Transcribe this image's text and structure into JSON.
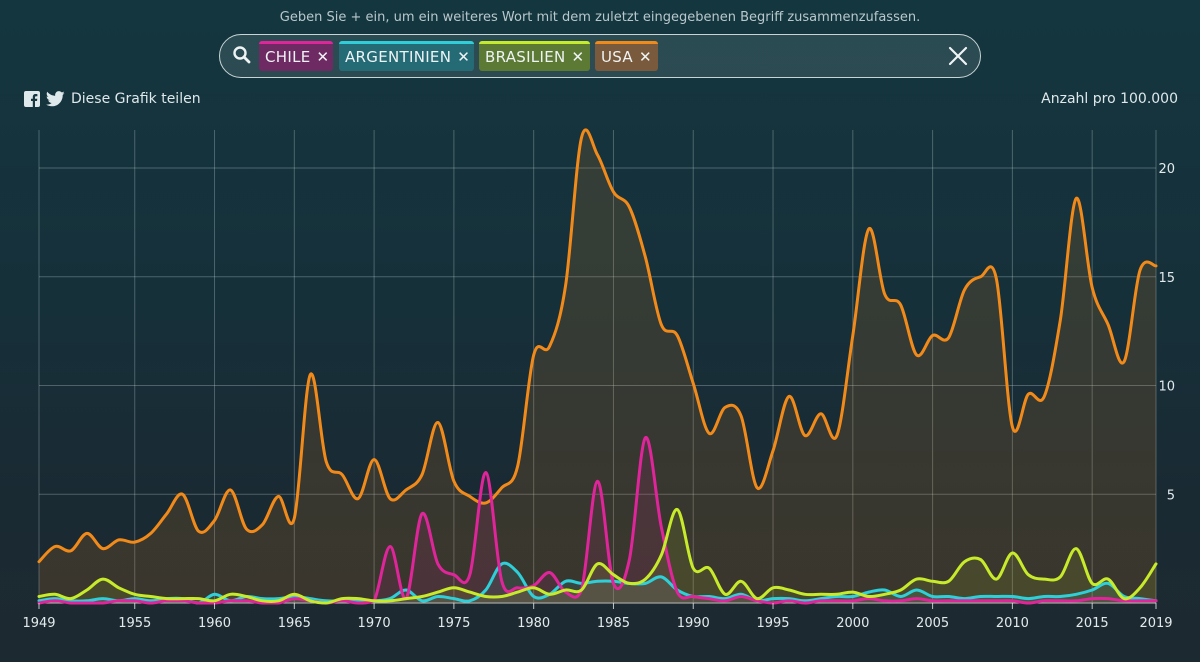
{
  "hint_text": "Geben Sie + ein, um ein weiteres Wort mit dem zuletzt eingegebenen Begriff zusammenzufassen.",
  "search": {
    "tags": [
      {
        "label": "CHILE",
        "color": "#e0259b"
      },
      {
        "label": "ARGENTINIEN",
        "color": "#2ecfd8"
      },
      {
        "label": "BRASILIEN",
        "color": "#c7ea2a"
      },
      {
        "label": "USA",
        "color": "#f28a1a"
      }
    ],
    "remove_symbol": "✕"
  },
  "share_text": "Diese Grafik teilen",
  "y_unit": "Anzahl pro 100.000",
  "chart_data": {
    "type": "area",
    "title": "",
    "xlabel": "",
    "ylabel": "Anzahl pro 100.000",
    "xlim": [
      1949,
      2019
    ],
    "ylim": [
      0,
      22
    ],
    "x_ticks": [
      1949,
      1955,
      1960,
      1965,
      1970,
      1975,
      1980,
      1985,
      1990,
      1995,
      2000,
      2005,
      2010,
      2015,
      2019
    ],
    "y_ticks": [
      5,
      10,
      15,
      20
    ],
    "grid": true,
    "x": [
      1949,
      1950,
      1951,
      1952,
      1953,
      1954,
      1955,
      1956,
      1957,
      1958,
      1959,
      1960,
      1961,
      1962,
      1963,
      1964,
      1965,
      1966,
      1967,
      1968,
      1969,
      1970,
      1971,
      1972,
      1973,
      1974,
      1975,
      1976,
      1977,
      1978,
      1979,
      1980,
      1981,
      1982,
      1983,
      1984,
      1985,
      1986,
      1987,
      1988,
      1989,
      1990,
      1991,
      1992,
      1993,
      1994,
      1995,
      1996,
      1997,
      1998,
      1999,
      2000,
      2001,
      2002,
      2003,
      2004,
      2005,
      2006,
      2007,
      2008,
      2009,
      2010,
      2011,
      2012,
      2013,
      2014,
      2015,
      2016,
      2017,
      2018,
      2019
    ],
    "series": [
      {
        "name": "USA",
        "color": "#f28a1a",
        "values": [
          1.9,
          2.6,
          2.4,
          3.2,
          2.5,
          2.9,
          2.8,
          3.2,
          4.1,
          5.0,
          3.3,
          3.8,
          5.2,
          3.4,
          3.6,
          4.9,
          3.9,
          10.5,
          6.5,
          5.9,
          4.8,
          6.6,
          4.8,
          5.2,
          5.9,
          8.3,
          5.6,
          4.9,
          4.6,
          5.3,
          6.3,
          11.4,
          11.8,
          14.6,
          21.4,
          20.6,
          18.9,
          18.2,
          15.9,
          12.8,
          12.3,
          10.1,
          7.8,
          9.0,
          8.6,
          5.3,
          7.0,
          9.5,
          7.7,
          8.7,
          7.7,
          12.3,
          17.2,
          14.2,
          13.7,
          11.4,
          12.3,
          12.2,
          14.4,
          15.0,
          14.9,
          8.1,
          9.6,
          9.5,
          13.0,
          18.6,
          14.5,
          12.8,
          11.1,
          15.3,
          15.5
        ]
      },
      {
        "name": "CHILE",
        "color": "#e0259b",
        "values": [
          0.0,
          0.1,
          0.0,
          0.0,
          0.0,
          0.1,
          0.1,
          0.0,
          0.1,
          0.1,
          0.0,
          0.0,
          0.1,
          0.1,
          0.0,
          0.0,
          0.2,
          0.1,
          0.0,
          0.1,
          0.0,
          0.1,
          2.6,
          0.2,
          4.1,
          1.8,
          1.3,
          1.3,
          6.0,
          1.0,
          0.7,
          0.8,
          1.4,
          0.5,
          0.6,
          5.6,
          0.9,
          2.0,
          7.6,
          3.5,
          0.5,
          0.3,
          0.2,
          0.1,
          0.3,
          0.1,
          0.0,
          0.1,
          0.0,
          0.1,
          0.1,
          0.1,
          0.2,
          0.1,
          0.1,
          0.2,
          0.1,
          0.1,
          0.1,
          0.1,
          0.1,
          0.1,
          0.0,
          0.1,
          0.1,
          0.1,
          0.2,
          0.2,
          0.1,
          0.1,
          0.1
        ]
      },
      {
        "name": "ARGENTINIEN",
        "color": "#2ecfd8",
        "values": [
          0.1,
          0.2,
          0.1,
          0.1,
          0.2,
          0.1,
          0.2,
          0.1,
          0.2,
          0.2,
          0.0,
          0.4,
          0.1,
          0.3,
          0.2,
          0.2,
          0.3,
          0.2,
          0.1,
          0.1,
          0.1,
          0.1,
          0.2,
          0.6,
          0.1,
          0.3,
          0.2,
          0.1,
          0.6,
          1.8,
          1.4,
          0.3,
          0.4,
          1.0,
          0.9,
          1.0,
          1.0,
          0.9,
          0.9,
          1.2,
          0.6,
          0.3,
          0.3,
          0.2,
          0.4,
          0.1,
          0.2,
          0.2,
          0.1,
          0.2,
          0.3,
          0.3,
          0.5,
          0.6,
          0.3,
          0.6,
          0.3,
          0.3,
          0.2,
          0.3,
          0.3,
          0.3,
          0.2,
          0.3,
          0.3,
          0.4,
          0.6,
          0.9,
          0.3,
          0.2,
          0.1
        ]
      },
      {
        "name": "BRASILIEN",
        "color": "#c7ea2a",
        "values": [
          0.3,
          0.4,
          0.2,
          0.6,
          1.1,
          0.7,
          0.4,
          0.3,
          0.2,
          0.2,
          0.2,
          0.1,
          0.4,
          0.3,
          0.1,
          0.1,
          0.4,
          0.1,
          0.0,
          0.2,
          0.2,
          0.1,
          0.1,
          0.2,
          0.3,
          0.5,
          0.7,
          0.5,
          0.3,
          0.3,
          0.5,
          0.7,
          0.4,
          0.6,
          0.6,
          1.8,
          1.3,
          0.9,
          1.1,
          2.2,
          4.3,
          1.6,
          1.6,
          0.4,
          1.0,
          0.2,
          0.7,
          0.6,
          0.4,
          0.4,
          0.4,
          0.5,
          0.3,
          0.4,
          0.6,
          1.1,
          1.0,
          1.0,
          1.9,
          2.0,
          1.1,
          2.3,
          1.3,
          1.1,
          1.2,
          2.5,
          0.9,
          1.1,
          0.2,
          0.7,
          1.8
        ]
      }
    ]
  }
}
